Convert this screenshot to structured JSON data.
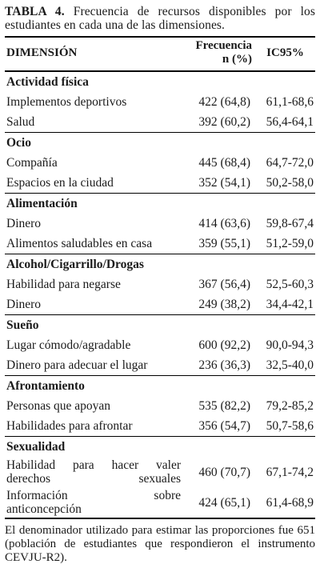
{
  "caption": {
    "label": "TABLA 4.",
    "text": "Frecuencia de recursos disponibles por los estudiantes en cada una de las dimensiones."
  },
  "table": {
    "headers": {
      "dimension": "DIMENSIÓN",
      "frequency_line1": "Frecuencia",
      "frequency_line2": "n (%)",
      "ci": "IC95%"
    },
    "sections": [
      {
        "title": "Actividad física",
        "rows": [
          {
            "label": "Implementos deportivos",
            "freq": "422 (64,8)",
            "ci": "61,1-68,6"
          },
          {
            "label": "Salud",
            "freq": "392 (60,2)",
            "ci": "56,4-64,1"
          }
        ]
      },
      {
        "title": "Ocio",
        "rows": [
          {
            "label": "Compañía",
            "freq": "445 (68,4)",
            "ci": "64,7-72,0"
          },
          {
            "label": "Espacios en la ciudad",
            "freq": "352 (54,1)",
            "ci": "50,2-58,0"
          }
        ]
      },
      {
        "title": "Alimentación",
        "rows": [
          {
            "label": "Dinero",
            "freq": "414 (63,6)",
            "ci": "59,8-67,4"
          },
          {
            "label": "Alimentos saludables en casa",
            "freq": "359 (55,1)",
            "ci": "51,2-59,0"
          }
        ]
      },
      {
        "title": "Alcohol/Cigarrillo/Drogas",
        "rows": [
          {
            "label": "Habilidad para negarse",
            "freq": "367 (56,4)",
            "ci": "52,5-60,3"
          },
          {
            "label": "Dinero",
            "freq": "249 (38,2)",
            "ci": "34,4-42,1"
          }
        ]
      },
      {
        "title": "Sueño",
        "rows": [
          {
            "label": "Lugar cómodo/agradable",
            "freq": "600 (92,2)",
            "ci": "90,0-94,3"
          },
          {
            "label": "Dinero para adecuar el lugar",
            "freq": "236 (36,3)",
            "ci": "32,5-40,0"
          }
        ]
      },
      {
        "title": "Afrontamiento",
        "rows": [
          {
            "label": "Personas que apoyan",
            "freq": "535 (82,2)",
            "ci": "79,2-85,2"
          },
          {
            "label": "Habilidades para afrontar",
            "freq": "356 (54,7)",
            "ci": "50,7-58,6"
          }
        ]
      },
      {
        "title": "Sexualidad",
        "rows": [
          {
            "label_line1": "Habilidad para hacer valer",
            "label_line2": "derechos sexuales",
            "freq": "460 (70,7)",
            "ci": "67,1-74,2"
          },
          {
            "label_line1": "Información sobre",
            "label_line2": "anticoncepción",
            "freq": "424 (65,1)",
            "ci": "61,4-68,9"
          }
        ]
      }
    ]
  },
  "note": "El denominador utilizado para estimar las proporciones fue 651 (población de estudiantes que respondieron el instrumento CEVJU-R2)."
}
